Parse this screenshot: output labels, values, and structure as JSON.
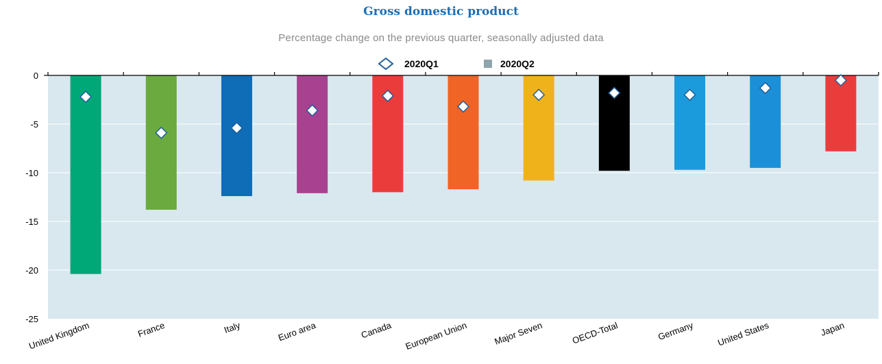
{
  "chart_data": {
    "type": "bar",
    "title": "Gross domestic product",
    "subtitle": "Percentage change on the previous quarter, seasonally adjusted data",
    "categories": [
      "United Kingdom",
      "France",
      "Italy",
      "Euro area",
      "Canada",
      "European Union",
      "Major Seven",
      "OECD-Total",
      "Germany",
      "United States",
      "Japan"
    ],
    "series": [
      {
        "name": "2020Q1",
        "marker": "diamond",
        "values": [
          -2.2,
          -5.9,
          -5.4,
          -3.6,
          -2.1,
          -3.2,
          -2.0,
          -1.8,
          -2.0,
          -1.3,
          -0.5
        ]
      },
      {
        "name": "2020Q2",
        "marker": "bar",
        "values": [
          -20.4,
          -13.8,
          -12.4,
          -12.1,
          -12.0,
          -11.7,
          -10.8,
          -9.8,
          -9.7,
          -9.5,
          -7.8
        ]
      }
    ],
    "bar_colors": [
      "#00a878",
      "#6aaa3f",
      "#0f6cb6",
      "#a8418f",
      "#eb3c3c",
      "#f06426",
      "#f0b21a",
      "#000000",
      "#1b9bdb",
      "#1b90d8",
      "#eb3c3c"
    ],
    "legend_swatch_color": "#8fa4ab",
    "diamond_stroke": "#1f5f9b",
    "plot_background": "#d9e8ef",
    "yticks": [
      0,
      -5,
      -10,
      -15,
      -20,
      -25
    ],
    "ylim": [
      -25,
      0
    ],
    "grid": true,
    "legend_position": "top-center"
  }
}
